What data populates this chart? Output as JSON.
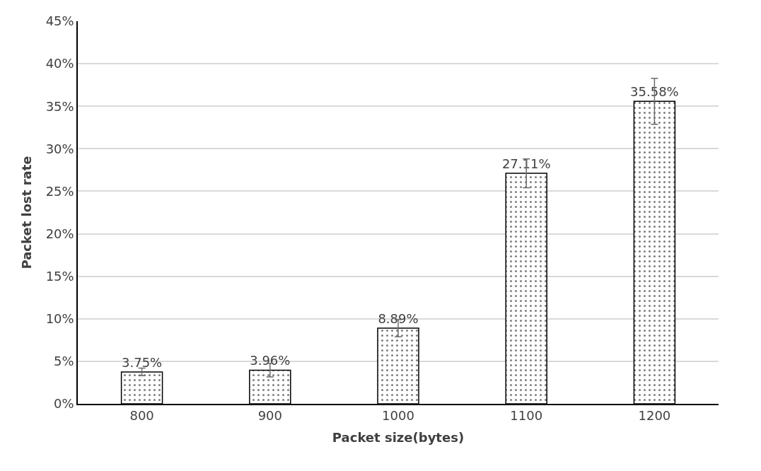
{
  "chart_data": {
    "type": "bar",
    "xlabel": "Packet size(bytes)",
    "ylabel": "Packet lost rate",
    "categories": [
      "800",
      "900",
      "1000",
      "1100",
      "1200"
    ],
    "values": [
      3.75,
      3.96,
      8.89,
      27.11,
      35.58
    ],
    "value_labels": [
      "3.75%",
      "3.96%",
      "8.89%",
      "27.11%",
      "35.58%"
    ],
    "errors": [
      0.45,
      0.8,
      1.0,
      1.7,
      2.7
    ],
    "color": "#000000",
    "ylim": [
      0,
      45
    ],
    "yticks": [
      {
        "value": 0,
        "label": "0%"
      },
      {
        "value": 5,
        "label": "5%"
      },
      {
        "value": 10,
        "label": "10%"
      },
      {
        "value": 15,
        "label": "15%"
      },
      {
        "value": 20,
        "label": "20%"
      },
      {
        "value": 25,
        "label": "25%"
      },
      {
        "value": 30,
        "label": "30%"
      },
      {
        "value": 35,
        "label": "35%"
      },
      {
        "value": 40,
        "label": "40%"
      },
      {
        "value": 45,
        "label": "45%"
      }
    ],
    "grid": "y"
  }
}
